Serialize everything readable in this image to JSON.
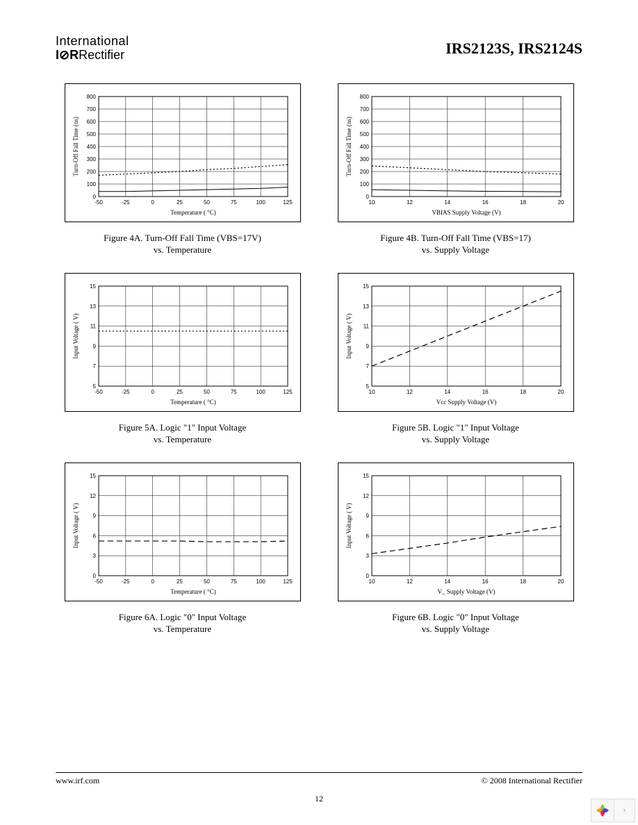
{
  "header": {
    "logo_line1": "International",
    "logo_ior": "I⊘R",
    "logo_line2": "Rectifier",
    "part_title": "IRS2123S, IRS2124S"
  },
  "footer": {
    "left": "www.irf.com",
    "right": "© 2008 International Rectifier",
    "page_num": "12"
  },
  "charts": {
    "c4a": {
      "type": "line",
      "caption_l1": "Figure 4A. Turn-Off Fall Time  (VBS=17V)",
      "caption_l2": "vs. Temperature",
      "xlabel": "Temperature (       °C)",
      "ylabel": "Turn-Off Fall Time (ns)",
      "xlim": [
        -50,
        125
      ],
      "xtick_step": 25,
      "ylim": [
        0,
        800
      ],
      "ytick_step": 100,
      "grid_color": "#000000",
      "bg": "#ffffff",
      "series": [
        {
          "style": "solid",
          "color": "#000000",
          "width": 1,
          "x": [
            -50,
            -25,
            0,
            25,
            50,
            75,
            100,
            125
          ],
          "y": [
            40,
            40,
            45,
            50,
            55,
            60,
            65,
            75
          ]
        },
        {
          "style": "dotted",
          "color": "#000000",
          "width": 1.2,
          "x": [
            -50,
            -25,
            0,
            25,
            50,
            75,
            100,
            125
          ],
          "y": [
            170,
            180,
            190,
            200,
            215,
            225,
            240,
            255
          ]
        }
      ]
    },
    "c4b": {
      "type": "line",
      "caption_l1": "Figure 4B. Turn-Off Fall Time (VBS=17)",
      "caption_l2": "vs. Supply Voltage",
      "xlabel": "VBIAS Supply Voltage (V)",
      "ylabel": "Turn-Off Fall Time (ns)",
      "xlim": [
        10,
        20
      ],
      "xtick_step": 2,
      "ylim": [
        0,
        800
      ],
      "ytick_step": 100,
      "grid_color": "#000000",
      "bg": "#ffffff",
      "series": [
        {
          "style": "solid",
          "color": "#000000",
          "width": 1,
          "x": [
            10,
            12,
            14,
            16,
            18,
            20
          ],
          "y": [
            55,
            50,
            45,
            42,
            40,
            38
          ]
        },
        {
          "style": "dotted",
          "color": "#000000",
          "width": 1.2,
          "x": [
            10,
            12,
            14,
            16,
            18,
            20
          ],
          "y": [
            245,
            230,
            215,
            200,
            190,
            180
          ]
        }
      ]
    },
    "c5a": {
      "type": "line",
      "caption_l1": "Figure 5A. Logic \"1\" Input Voltage",
      "caption_l2": "vs. Temperature",
      "xlabel": "Temperature (       °C)",
      "ylabel": "Input Voltage  (    V)",
      "xlim": [
        -50,
        125
      ],
      "xtick_step": 25,
      "ylim": [
        5,
        15
      ],
      "ytick_step": 2,
      "grid_color": "#000000",
      "bg": "#ffffff",
      "series": [
        {
          "style": "dotted",
          "color": "#000000",
          "width": 1.2,
          "x": [
            -50,
            -25,
            0,
            25,
            50,
            75,
            100,
            125
          ],
          "y": [
            10.5,
            10.5,
            10.5,
            10.5,
            10.5,
            10.5,
            10.5,
            10.5
          ]
        }
      ]
    },
    "c5b": {
      "type": "line",
      "caption_l1": "Figure 5B. Logic \"1\" Input Voltage",
      "caption_l2": "vs. Supply Voltage",
      "xlabel": "Vcc Supply Voltage (V)",
      "ylabel": "Input Voltage  (    V)",
      "xlim": [
        10,
        20
      ],
      "xtick_step": 2,
      "ylim": [
        5,
        15
      ],
      "ytick_step": 2,
      "grid_color": "#000000",
      "bg": "#ffffff",
      "series": [
        {
          "style": "dashed",
          "color": "#000000",
          "width": 1.2,
          "x": [
            10,
            12,
            14,
            16,
            18,
            20
          ],
          "y": [
            7.0,
            8.5,
            10.0,
            11.5,
            13.0,
            14.5
          ]
        }
      ]
    },
    "c6a": {
      "type": "line",
      "caption_l1": "Figure 6A. Logic \"0\" Input Voltage",
      "caption_l2": "vs. Temperature",
      "xlabel": "Temperature (       °C)",
      "ylabel": "Input Voltage  (    V)",
      "xlim": [
        -50,
        125
      ],
      "xtick_step": 25,
      "ylim": [
        0,
        15
      ],
      "ytick_step": 3,
      "grid_color": "#000000",
      "bg": "#ffffff",
      "series": [
        {
          "style": "dashed",
          "color": "#000000",
          "width": 1.2,
          "x": [
            -50,
            -25,
            0,
            25,
            50,
            75,
            100,
            125
          ],
          "y": [
            5.2,
            5.2,
            5.2,
            5.2,
            5.1,
            5.1,
            5.1,
            5.2
          ]
        }
      ]
    },
    "c6b": {
      "type": "line",
      "caption_l1": "Figure 6B. Logic \"0\"  Input Voltage",
      "caption_l2": "vs. Supply Voltage",
      "xlabel": "V_  Supply Voltage (V)",
      "ylabel": "Input Voltage  (    V)",
      "xlim": [
        10,
        20
      ],
      "xtick_step": 2,
      "ylim": [
        0,
        15
      ],
      "ytick_step": 3,
      "grid_color": "#000000",
      "bg": "#ffffff",
      "series": [
        {
          "style": "dashed",
          "color": "#000000",
          "width": 1.2,
          "x": [
            10,
            12,
            14,
            16,
            18,
            20
          ],
          "y": [
            3.3,
            4.1,
            4.9,
            5.8,
            6.6,
            7.4
          ]
        }
      ]
    }
  }
}
